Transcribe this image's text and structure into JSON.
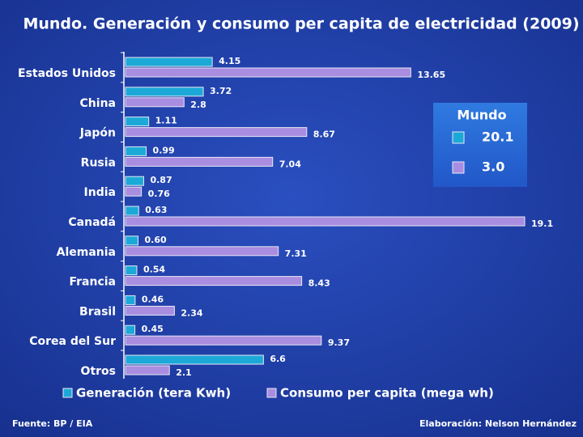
{
  "chart_data": {
    "type": "bar",
    "orientation": "horizontal",
    "title": "Mundo. Generación y consumo per capita de  electricidad (2009)",
    "categories": [
      "Estados Unidos",
      "China",
      "Japón",
      "Rusia",
      "India",
      "Canadá",
      "Alemania",
      "Francia",
      "Brasil",
      "Corea del Sur",
      "Otros"
    ],
    "series": [
      {
        "name": "Generación (tera Kwh)",
        "color": "#1ca9d8",
        "values": [
          4.15,
          3.72,
          1.11,
          0.99,
          0.87,
          0.63,
          0.6,
          0.54,
          0.46,
          0.45,
          6.6
        ],
        "value_labels": [
          "4.15",
          "3.72",
          "1.11",
          "0.99",
          "0.87",
          "0.63",
          "0.60",
          "0.54",
          "0.46",
          "0.45",
          "6.6"
        ]
      },
      {
        "name": "Consumo per capita (mega wh)",
        "color": "#a98de0",
        "values": [
          13.65,
          2.8,
          8.67,
          7.04,
          0.76,
          19.1,
          7.31,
          8.43,
          2.34,
          9.37,
          2.1
        ],
        "value_labels": [
          "13.65",
          "2.8",
          "8.67",
          "7.04",
          "0.76",
          "19.1",
          "7.31",
          "8.43",
          "2.34",
          "9.37",
          "2.1"
        ]
      }
    ],
    "xlim": [
      0,
      19.1
    ],
    "inset": {
      "title": "Mundo",
      "values": [
        20.1,
        3.0
      ],
      "value_labels": [
        "20.1",
        "3.0"
      ]
    },
    "source": "Fuente: BP / EIA",
    "credit": "Elaboración: Nelson Hernández"
  }
}
